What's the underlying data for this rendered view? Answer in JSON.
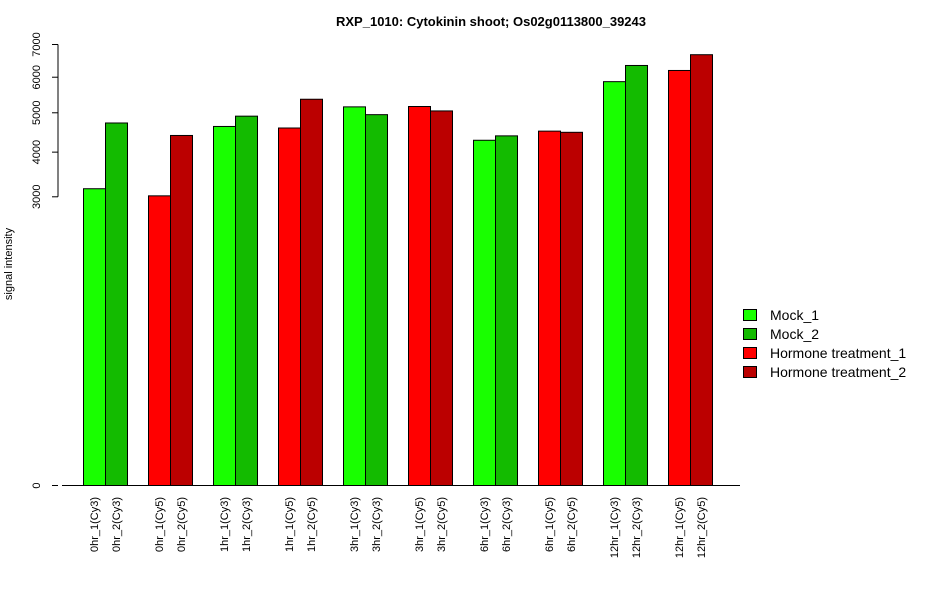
{
  "chart_data": {
    "type": "bar",
    "title": "RXP_1010: Cytokinin shoot; Os02g0113800_39243",
    "ylabel": "signal intensity",
    "xlabel": "",
    "yticks": [
      0,
      3000,
      4000,
      5000,
      6000,
      7000
    ],
    "ytick_labels": [
      "0",
      "3000",
      "4000",
      "5000",
      "6000",
      "7000"
    ],
    "y_scale": "sqrt",
    "ylim": [
      0,
      7000
    ],
    "legend_position": "right",
    "grid": false,
    "groups": [
      {
        "bars": [
          {
            "label": "0hr_1(Cy3)",
            "value": 3170,
            "series": 0
          },
          {
            "label": "0hr_2(Cy3)",
            "value": 4730,
            "series": 1
          }
        ]
      },
      {
        "bars": [
          {
            "label": "0hr_1(Cy5)",
            "value": 3020,
            "series": 2
          },
          {
            "label": "0hr_2(Cy5)",
            "value": 4410,
            "series": 3
          }
        ]
      },
      {
        "bars": [
          {
            "label": "1hr_1(Cy3)",
            "value": 4640,
            "series": 0
          },
          {
            "label": "1hr_2(Cy3)",
            "value": 4910,
            "series": 1
          }
        ]
      },
      {
        "bars": [
          {
            "label": "1hr_1(Cy5)",
            "value": 4600,
            "series": 2
          },
          {
            "label": "1hr_2(Cy5)",
            "value": 5370,
            "series": 3
          }
        ]
      },
      {
        "bars": [
          {
            "label": "3hr_1(Cy3)",
            "value": 5160,
            "series": 0
          },
          {
            "label": "3hr_2(Cy3)",
            "value": 4950,
            "series": 1
          }
        ]
      },
      {
        "bars": [
          {
            "label": "3hr_1(Cy5)",
            "value": 5170,
            "series": 2
          },
          {
            "label": "3hr_2(Cy5)",
            "value": 5050,
            "series": 3
          }
        ]
      },
      {
        "bars": [
          {
            "label": "6hr_1(Cy3)",
            "value": 4290,
            "series": 0
          },
          {
            "label": "6hr_2(Cy3)",
            "value": 4400,
            "series": 1
          }
        ]
      },
      {
        "bars": [
          {
            "label": "6hr_1(Cy5)",
            "value": 4520,
            "series": 2
          },
          {
            "label": "6hr_2(Cy5)",
            "value": 4490,
            "series": 3
          }
        ]
      },
      {
        "bars": [
          {
            "label": "12hr_1(Cy3)",
            "value": 5870,
            "series": 0
          },
          {
            "label": "12hr_2(Cy3)",
            "value": 6350,
            "series": 1
          }
        ]
      },
      {
        "bars": [
          {
            "label": "12hr_1(Cy5)",
            "value": 6200,
            "series": 2
          },
          {
            "label": "12hr_2(Cy5)",
            "value": 6680,
            "series": 3
          }
        ]
      }
    ],
    "series": [
      {
        "name": "Mock_1",
        "color": "#19ff00"
      },
      {
        "name": "Mock_2",
        "color": "#13bb00"
      },
      {
        "name": "Hormone treatment_1",
        "color": "#ff0000"
      },
      {
        "name": "Hormone treatment_2",
        "color": "#bb0000"
      }
    ]
  }
}
